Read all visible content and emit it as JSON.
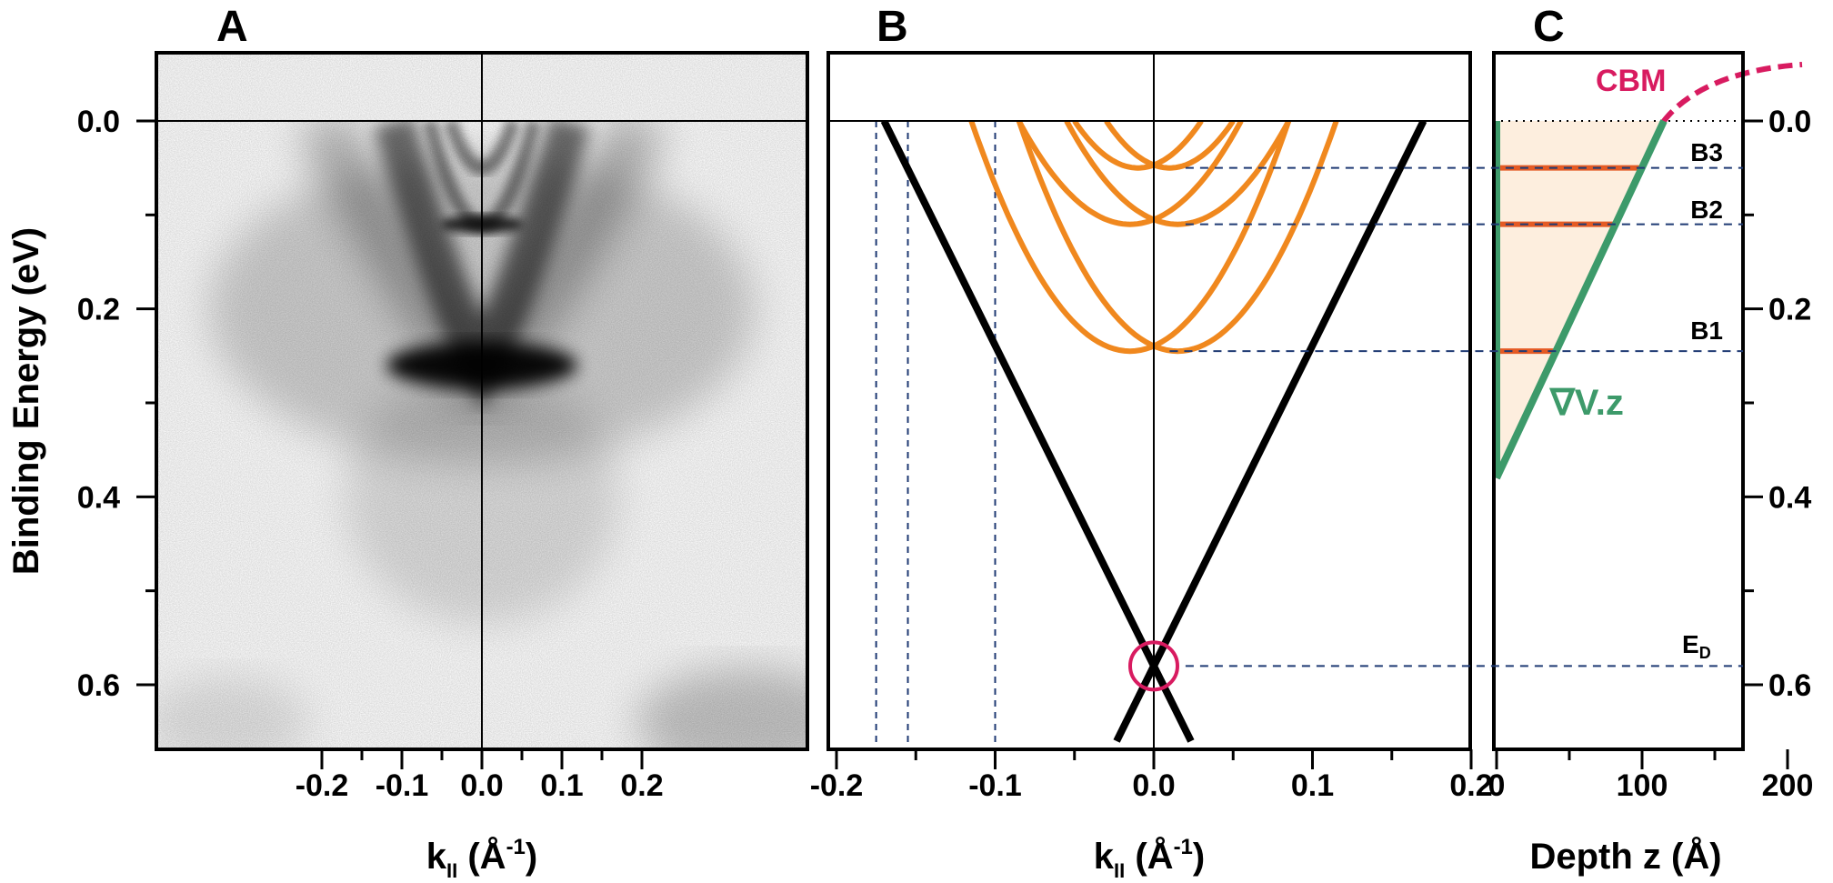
{
  "chart_data": [
    {
      "panel": "A",
      "type": "heatmap",
      "xlim": [
        -0.2,
        0.2
      ],
      "ylim": [
        0.0,
        0.65
      ],
      "y_inverted": true,
      "x_ticks": [
        "-0.2",
        "-0.1",
        "0.0",
        "0.1",
        "0.2"
      ],
      "y_ticks": [
        "0.0",
        "0.2",
        "0.4",
        "0.6"
      ],
      "xlabel": "k",
      "xlabel_sub": "II",
      "xlabel_unit": " (Å",
      "xlabel_unit_sup": "-1",
      "xlabel_close": ")",
      "ylabel": "Binding Energy (eV)",
      "colormap": "grayscale (dark = high intensity)",
      "features": [
        {
          "kind": "outer-V",
          "apex_k": 0.0,
          "apex_E": 0.26,
          "k_at_EF": 0.11
        },
        {
          "kind": "intense-spot",
          "k": 0.0,
          "E": 0.26
        },
        {
          "kind": "subband",
          "k": 0.0,
          "E": 0.11
        },
        {
          "kind": "subband",
          "k": 0.0,
          "E": 0.05
        }
      ]
    },
    {
      "panel": "B",
      "type": "line",
      "xlim": [
        -0.2,
        0.2
      ],
      "ylim": [
        0.0,
        0.65
      ],
      "y_inverted": true,
      "x_ticks": [
        "-0.2",
        "-0.1",
        "0.0",
        "0.1",
        "0.2"
      ],
      "xlabel": "k",
      "xlabel_sub": "II",
      "xlabel_unit": " (Å",
      "xlabel_unit_sup": "-1",
      "xlabel_close": ")",
      "dirac_point": {
        "k": 0.0,
        "E": 0.58
      },
      "dirac_cone_k_at_EF": 0.17,
      "subbands": [
        {
          "label": "B1",
          "E0": 0.245,
          "k_split": 0.015,
          "k_at_EF": 0.1
        },
        {
          "label": "B2",
          "E0": 0.11,
          "k_split": 0.015,
          "k_at_EF": 0.07
        },
        {
          "label": "B3",
          "E0": 0.05,
          "k_split": 0.01,
          "k_at_EF": 0.04
        }
      ],
      "guides_k": [
        -0.175,
        -0.155,
        -0.1
      ],
      "colors": {
        "dirac": "#000000",
        "subbands": "#f0881e",
        "dirac_marker": "#d81b60",
        "guide": "#1f3a73"
      }
    },
    {
      "panel": "C",
      "type": "line",
      "xlim": [
        0,
        220
      ],
      "ylim": [
        0.0,
        0.65
      ],
      "y_inverted": true,
      "x_ticks": [
        "0",
        "100",
        "200"
      ],
      "y_ticks": [
        "0.0",
        "0.2",
        "0.4",
        "0.6"
      ],
      "xlabel": "Depth z (Å)",
      "curve_label": "CBM",
      "potential_label": "∇V.z",
      "ED_label": "E",
      "ED_sub": "D",
      "band_labels": [
        "B3",
        "B2",
        "B1"
      ],
      "band_levels": [
        0.05,
        0.11,
        0.245
      ],
      "ED_level": 0.58,
      "potential_line": [
        [
          0,
          0.38
        ],
        [
          115,
          0.0
        ]
      ],
      "cbm_points": [
        [
          0,
          0.38
        ],
        [
          60,
          0.2
        ],
        [
          115,
          0.0
        ],
        [
          150,
          -0.05
        ],
        [
          210,
          -0.06
        ]
      ],
      "colors": {
        "cbm": "#d81b60",
        "potential": "#3d9a6a",
        "levels": "#e45a24",
        "fill": "#fdeede"
      }
    }
  ]
}
